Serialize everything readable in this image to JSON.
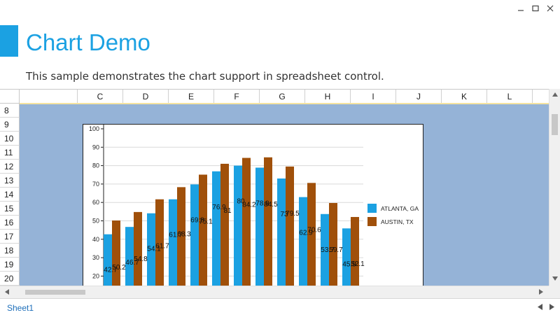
{
  "window": {
    "controls": [
      {
        "name": "minimize-button",
        "icon": "minimize-icon"
      },
      {
        "name": "maximize-button",
        "icon": "maximize-icon"
      },
      {
        "name": "close-button",
        "icon": "close-icon"
      }
    ]
  },
  "header": {
    "title": "Chart Demo",
    "description": "This sample demonstrates the chart support in spreadsheet control.",
    "accent_color": "#1ba1e2"
  },
  "grid": {
    "columns": [
      "C",
      "D",
      "E",
      "F",
      "G",
      "H",
      "I",
      "J",
      "K",
      "L"
    ],
    "rows": [
      "8",
      "9",
      "10",
      "11",
      "12",
      "13",
      "14",
      "15",
      "16",
      "17",
      "18",
      "19",
      "20"
    ],
    "selection_color": "#95b3d7"
  },
  "sheet_tabs": {
    "active": "Sheet1"
  },
  "chart_data": {
    "type": "bar",
    "categories": [
      "",
      "",
      "",
      "",
      "",
      "",
      "",
      "",
      "",
      "",
      "",
      ""
    ],
    "series": [
      {
        "name": "ATLANTA, GA",
        "color": "#1ba1e2",
        "values": [
          42.7,
          46.7,
          54.1,
          61.7,
          69.8,
          76.9,
          80,
          78.9,
          73,
          62.9,
          53.7,
          45.9
        ],
        "labels": [
          "42.7",
          "46.7",
          "54.1",
          "61.7",
          "69.8",
          "76.9",
          "80",
          "78.9",
          "73",
          "62.9",
          "53.7",
          "45.9"
        ]
      },
      {
        "name": "AUSTIN, TX",
        "color": "#a0500a",
        "values": [
          50.2,
          54.8,
          61.7,
          68.3,
          75.1,
          81,
          84.2,
          84.5,
          79.5,
          70.6,
          59.7,
          52.1
        ],
        "labels": [
          "50.2",
          "54.8",
          "61.7",
          "68.3",
          "75.1",
          "81",
          "84.2",
          "84.5",
          "79.5",
          "70.6",
          "59.7",
          "52.1"
        ]
      }
    ],
    "yticks": [
      "20",
      "30",
      "40",
      "50",
      "60",
      "70",
      "80",
      "90",
      "100"
    ],
    "ylim": [
      0,
      100
    ],
    "grid": true,
    "legend": "right"
  }
}
